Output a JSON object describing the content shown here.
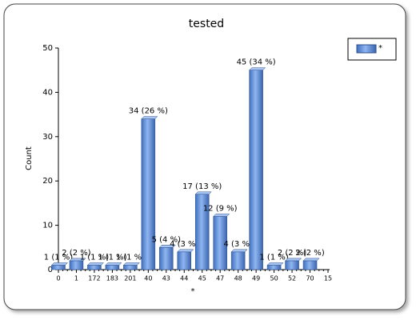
{
  "chart_data": {
    "type": "bar",
    "title": "tested",
    "y_label": "Count",
    "x_label": "*",
    "categories": [
      "0",
      "1",
      "172",
      "183",
      "201",
      "40",
      "43",
      "44",
      "45",
      "47",
      "48",
      "49",
      "50",
      "52",
      "70",
      "15"
    ],
    "values": [
      1,
      2,
      1,
      1,
      1,
      34,
      5,
      4,
      17,
      12,
      4,
      45,
      1,
      2,
      2,
      null
    ],
    "value_labels": [
      "1 (1 %)",
      "2 (2 %)",
      "1 (1 %)",
      "1 (1 %)",
      "1 (1 %)",
      "34 (26 %)",
      "5 (4 %)",
      "4 (3 %)",
      "17 (13 %)",
      "12 (9 %)",
      "4 (3 %)",
      "45 (34 %)",
      "1 (1 %)",
      "2 (2 %)",
      "2 (2 %)",
      null
    ],
    "series_name": "*",
    "color": "#5b8fdc",
    "ylim": [
      0,
      50
    ],
    "yticks": [
      0,
      10,
      20,
      30,
      40,
      50
    ],
    "legend": "top-right"
  }
}
